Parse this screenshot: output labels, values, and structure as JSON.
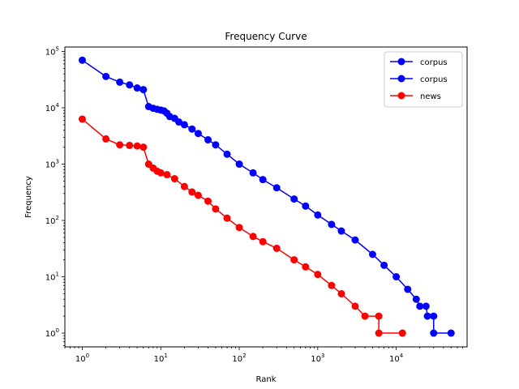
{
  "chart_data": {
    "type": "line",
    "title": "Frequency Curve",
    "xlabel": "Rank",
    "ylabel": "Frequency",
    "xscale": "log",
    "yscale": "log",
    "xlim": [
      0.6,
      80000
    ],
    "ylim": [
      0.57,
      120000
    ],
    "x_ticks": [
      {
        "value": 1,
        "base": "10",
        "exp": "0"
      },
      {
        "value": 10,
        "base": "10",
        "exp": "1"
      },
      {
        "value": 100,
        "base": "10",
        "exp": "2"
      },
      {
        "value": 1000,
        "base": "10",
        "exp": "3"
      },
      {
        "value": 10000,
        "base": "10",
        "exp": "4"
      }
    ],
    "y_ticks": [
      {
        "value": 1,
        "base": "10",
        "exp": "0"
      },
      {
        "value": 10,
        "base": "10",
        "exp": "1"
      },
      {
        "value": 100,
        "base": "10",
        "exp": "2"
      },
      {
        "value": 1000,
        "base": "10",
        "exp": "3"
      },
      {
        "value": 10000,
        "base": "10",
        "exp": "4"
      },
      {
        "value": 100000,
        "base": "10",
        "exp": "5"
      }
    ],
    "grid": false,
    "legend_position": "top-right",
    "series": [
      {
        "name": "corpus",
        "color": "#0000ff",
        "points": [
          [
            1,
            70000
          ],
          [
            2,
            36000
          ],
          [
            3,
            28500
          ],
          [
            4,
            25500
          ],
          [
            5,
            22500
          ],
          [
            6,
            21000
          ],
          [
            7,
            10500
          ],
          [
            8,
            9800
          ],
          [
            9,
            9400
          ],
          [
            10,
            9100
          ],
          [
            11,
            8800
          ],
          [
            12,
            8000
          ],
          [
            13,
            7000
          ],
          [
            15,
            6500
          ],
          [
            17,
            5600
          ],
          [
            20,
            5000
          ],
          [
            25,
            4200
          ],
          [
            30,
            3500
          ],
          [
            40,
            2700
          ],
          [
            50,
            2200
          ],
          [
            70,
            1500
          ],
          [
            100,
            1000
          ],
          [
            150,
            700
          ],
          [
            200,
            530
          ],
          [
            300,
            380
          ],
          [
            500,
            240
          ],
          [
            700,
            180
          ],
          [
            1000,
            125
          ],
          [
            1500,
            85
          ],
          [
            2000,
            65
          ],
          [
            3000,
            45
          ],
          [
            5000,
            25
          ],
          [
            7000,
            16
          ],
          [
            10000,
            10
          ],
          [
            14000,
            6
          ],
          [
            18000,
            4
          ],
          [
            20000,
            3
          ],
          [
            24000,
            3
          ],
          [
            25000,
            2
          ],
          [
            30000,
            2
          ],
          [
            30000,
            1
          ],
          [
            50000,
            1
          ]
        ]
      },
      {
        "name": "corpus",
        "color": "#0000ff",
        "points": []
      },
      {
        "name": "news",
        "color": "#ff0000",
        "points": [
          [
            1,
            6300
          ],
          [
            2,
            2800
          ],
          [
            3,
            2200
          ],
          [
            4,
            2150
          ],
          [
            5,
            2100
          ],
          [
            6,
            2000
          ],
          [
            7,
            1000
          ],
          [
            8,
            850
          ],
          [
            9,
            750
          ],
          [
            10,
            700
          ],
          [
            12,
            650
          ],
          [
            15,
            550
          ],
          [
            20,
            400
          ],
          [
            25,
            320
          ],
          [
            30,
            280
          ],
          [
            40,
            220
          ],
          [
            50,
            160
          ],
          [
            70,
            110
          ],
          [
            100,
            75
          ],
          [
            150,
            52
          ],
          [
            200,
            42
          ],
          [
            300,
            32
          ],
          [
            500,
            20
          ],
          [
            700,
            15
          ],
          [
            1000,
            11
          ],
          [
            1500,
            7
          ],
          [
            2000,
            5
          ],
          [
            3000,
            3
          ],
          [
            4000,
            2
          ],
          [
            6000,
            2
          ],
          [
            6000,
            1
          ],
          [
            12000,
            1
          ]
        ]
      }
    ]
  }
}
